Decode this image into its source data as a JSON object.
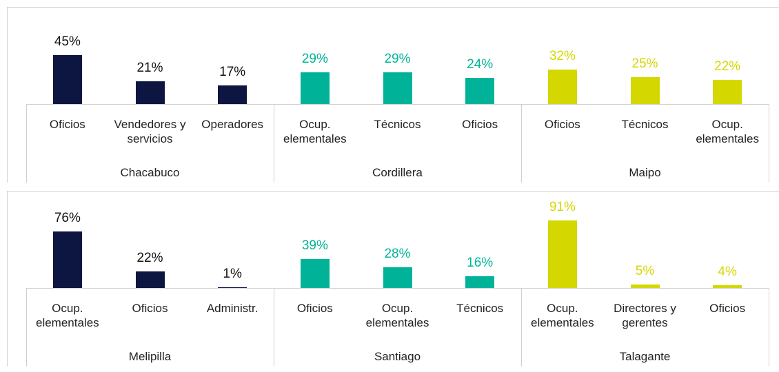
{
  "chart_data": [
    {
      "type": "bar",
      "groups": [
        {
          "name": "Chacabuco",
          "color": "#0d1641",
          "categories": [
            "Oficios",
            "Vendedores y servicios",
            "Operadores"
          ],
          "values": [
            45,
            21,
            17
          ],
          "value_labels": [
            "45%",
            "21%",
            "17%"
          ]
        },
        {
          "name": "Cordillera",
          "color": "#00b398",
          "categories": [
            "Ocup. elementales",
            "Técnicos",
            "Oficios"
          ],
          "values": [
            29,
            29,
            24
          ],
          "value_labels": [
            "29%",
            "29%",
            "24%"
          ]
        },
        {
          "name": "Maipo",
          "color": "#d4d800",
          "categories": [
            "Oficios",
            "Técnicos",
            "Ocup. elementales"
          ],
          "values": [
            32,
            25,
            22
          ],
          "value_labels": [
            "32%",
            "25%",
            "22%"
          ]
        }
      ]
    },
    {
      "type": "bar",
      "groups": [
        {
          "name": "Melipilla",
          "color": "#0d1641",
          "categories": [
            "Ocup. elementales",
            "Oficios",
            "Administr."
          ],
          "values": [
            76,
            22,
            1
          ],
          "value_labels": [
            "76%",
            "22%",
            "1%"
          ]
        },
        {
          "name": "Santiago",
          "color": "#00b398",
          "categories": [
            "Oficios",
            "Ocup. elementales",
            "Técnicos"
          ],
          "values": [
            39,
            28,
            16
          ],
          "value_labels": [
            "39%",
            "28%",
            "16%"
          ]
        },
        {
          "name": "Talagante",
          "color": "#d4d800",
          "categories": [
            "Ocup. elementales",
            "Directores y gerentes",
            "Oficios"
          ],
          "values": [
            91,
            5,
            4
          ],
          "value_labels": [
            "91%",
            "5%",
            "4%"
          ]
        }
      ]
    }
  ]
}
